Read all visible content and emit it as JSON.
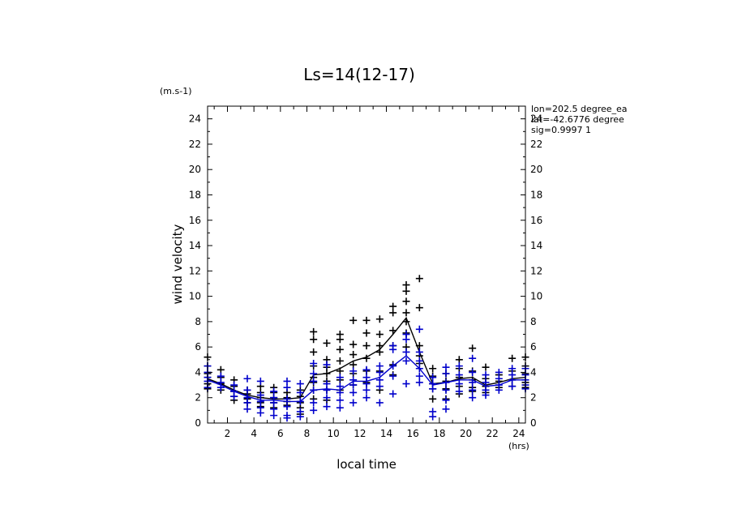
{
  "chart_data": {
    "type": "scatter",
    "title": "Ls=14(12-17)",
    "xlabel": "local time",
    "ylabel": "wind velocity",
    "x_unit": "(hrs)",
    "y_unit": "(m.s-1)",
    "xlim": [
      0.5,
      24.5
    ],
    "ylim": [
      0,
      25
    ],
    "xticks": [
      2,
      4,
      6,
      8,
      10,
      12,
      14,
      16,
      18,
      20,
      22,
      24
    ],
    "yticks": [
      0,
      2,
      4,
      6,
      8,
      10,
      12,
      14,
      16,
      18,
      20,
      22,
      24
    ],
    "annotations": [
      "lon=202.5 degree_ea",
      "lat=-42.6776 degree",
      "sig=0.9997 1"
    ],
    "colors": {
      "black": "#000000",
      "blue": "#0000cc"
    },
    "series": [
      {
        "color": "black",
        "line_x": [
          0.5,
          1.5,
          2.5,
          3.5,
          4.5,
          5.5,
          6.5,
          7.5,
          8.5,
          9.5,
          10.5,
          11.5,
          12.5,
          13.5,
          14.5,
          15.5,
          16.5,
          17.5,
          18.5,
          19.5,
          20.5,
          21.5,
          22.5,
          23.5,
          24.5
        ],
        "line_y": [
          3.5,
          3.1,
          2.6,
          2.2,
          2.0,
          1.9,
          1.9,
          2.0,
          3.8,
          3.9,
          4.3,
          4.9,
          5.2,
          5.8,
          7.0,
          8.3,
          5.6,
          3.1,
          3.2,
          3.5,
          3.6,
          3.0,
          3.2,
          3.5,
          3.6
        ],
        "points": [
          [
            0.5,
            5.2
          ],
          [
            0.5,
            4.5
          ],
          [
            0.5,
            3.9
          ],
          [
            0.5,
            3.6
          ],
          [
            0.5,
            3.1
          ],
          [
            0.5,
            2.7
          ],
          [
            1.5,
            4.2
          ],
          [
            1.5,
            3.6
          ],
          [
            1.5,
            3.1
          ],
          [
            1.5,
            2.6
          ],
          [
            2.5,
            3.4
          ],
          [
            2.5,
            2.9
          ],
          [
            2.5,
            2.5
          ],
          [
            2.5,
            2.1
          ],
          [
            2.5,
            1.8
          ],
          [
            3.5,
            2.6
          ],
          [
            3.5,
            2.3
          ],
          [
            3.5,
            1.9
          ],
          [
            3.5,
            1.6
          ],
          [
            4.5,
            2.9
          ],
          [
            4.5,
            2.4
          ],
          [
            4.5,
            2.0
          ],
          [
            4.5,
            1.6
          ],
          [
            4.5,
            1.3
          ],
          [
            5.5,
            2.8
          ],
          [
            5.5,
            2.4
          ],
          [
            5.5,
            2.0
          ],
          [
            5.5,
            1.6
          ],
          [
            5.5,
            1.2
          ],
          [
            6.5,
            2.4
          ],
          [
            6.5,
            2.0
          ],
          [
            6.5,
            1.7
          ],
          [
            6.5,
            1.4
          ],
          [
            7.5,
            2.6
          ],
          [
            7.5,
            2.1
          ],
          [
            7.5,
            1.6
          ],
          [
            7.5,
            1.2
          ],
          [
            7.5,
            0.7
          ],
          [
            8.5,
            7.2
          ],
          [
            8.5,
            6.6
          ],
          [
            8.5,
            5.6
          ],
          [
            8.5,
            4.5
          ],
          [
            8.5,
            3.6
          ],
          [
            8.5,
            3.2
          ],
          [
            8.5,
            2.6
          ],
          [
            8.5,
            1.9
          ],
          [
            9.5,
            6.3
          ],
          [
            9.5,
            5.0
          ],
          [
            9.5,
            4.4
          ],
          [
            9.5,
            3.9
          ],
          [
            9.5,
            3.3
          ],
          [
            9.5,
            2.6
          ],
          [
            9.5,
            1.8
          ],
          [
            10.5,
            7.0
          ],
          [
            10.5,
            6.6
          ],
          [
            10.5,
            5.8
          ],
          [
            10.5,
            4.9
          ],
          [
            10.5,
            4.1
          ],
          [
            10.5,
            3.4
          ],
          [
            10.5,
            2.6
          ],
          [
            11.5,
            8.1
          ],
          [
            11.5,
            6.2
          ],
          [
            11.5,
            5.4
          ],
          [
            11.5,
            4.6
          ],
          [
            11.5,
            3.9
          ],
          [
            11.5,
            3.0
          ],
          [
            12.5,
            8.1
          ],
          [
            12.5,
            7.1
          ],
          [
            12.5,
            6.1
          ],
          [
            12.5,
            5.1
          ],
          [
            12.5,
            4.1
          ],
          [
            12.5,
            3.2
          ],
          [
            13.5,
            8.2
          ],
          [
            13.5,
            7.0
          ],
          [
            13.5,
            6.1
          ],
          [
            13.5,
            5.6
          ],
          [
            13.5,
            4.1
          ],
          [
            13.5,
            2.6
          ],
          [
            14.5,
            9.2
          ],
          [
            14.5,
            8.7
          ],
          [
            14.5,
            7.3
          ],
          [
            14.5,
            6.1
          ],
          [
            14.5,
            4.6
          ],
          [
            14.5,
            3.8
          ],
          [
            15.5,
            10.9
          ],
          [
            15.5,
            10.4
          ],
          [
            15.5,
            9.6
          ],
          [
            15.5,
            8.7
          ],
          [
            15.5,
            8.0
          ],
          [
            15.5,
            7.1
          ],
          [
            15.5,
            6.0
          ],
          [
            16.5,
            11.4
          ],
          [
            16.5,
            9.1
          ],
          [
            16.5,
            6.1
          ],
          [
            16.5,
            5.3
          ],
          [
            16.5,
            4.7
          ],
          [
            17.5,
            4.3
          ],
          [
            17.5,
            3.7
          ],
          [
            17.5,
            3.1
          ],
          [
            17.5,
            2.7
          ],
          [
            17.5,
            1.9
          ],
          [
            18.5,
            3.9
          ],
          [
            18.5,
            3.3
          ],
          [
            18.5,
            2.7
          ],
          [
            18.5,
            1.9
          ],
          [
            19.5,
            5.0
          ],
          [
            19.5,
            4.3
          ],
          [
            19.5,
            3.6
          ],
          [
            19.5,
            2.9
          ],
          [
            19.5,
            2.3
          ],
          [
            20.5,
            5.9
          ],
          [
            20.5,
            4.1
          ],
          [
            20.5,
            3.4
          ],
          [
            20.5,
            2.8
          ],
          [
            20.5,
            2.5
          ],
          [
            21.5,
            4.4
          ],
          [
            21.5,
            3.5
          ],
          [
            21.5,
            2.9
          ],
          [
            21.5,
            2.4
          ],
          [
            22.5,
            3.8
          ],
          [
            22.5,
            3.3
          ],
          [
            22.5,
            2.8
          ],
          [
            23.5,
            5.1
          ],
          [
            23.5,
            4.1
          ],
          [
            23.5,
            3.4
          ],
          [
            23.5,
            2.9
          ],
          [
            24.5,
            5.2
          ],
          [
            24.5,
            4.5
          ],
          [
            24.5,
            3.9
          ],
          [
            24.5,
            3.2
          ],
          [
            24.5,
            2.8
          ]
        ]
      },
      {
        "color": "blue",
        "line_x": [
          0.5,
          1.5,
          2.5,
          3.5,
          4.5,
          5.5,
          6.5,
          7.5,
          8.5,
          9.5,
          10.5,
          11.5,
          12.5,
          13.5,
          14.5,
          15.5,
          16.5,
          17.5,
          18.5,
          19.5,
          20.5,
          21.5,
          22.5,
          23.5,
          24.5
        ],
        "line_y": [
          3.4,
          3.0,
          2.5,
          2.1,
          1.8,
          1.8,
          1.7,
          1.7,
          2.6,
          2.7,
          2.6,
          3.3,
          3.3,
          3.6,
          4.5,
          5.3,
          4.3,
          3.0,
          3.2,
          3.4,
          3.4,
          2.9,
          3.0,
          3.4,
          3.4
        ],
        "points": [
          [
            0.5,
            4.5
          ],
          [
            0.5,
            4.0
          ],
          [
            0.5,
            3.6
          ],
          [
            0.5,
            3.3
          ],
          [
            0.5,
            2.8
          ],
          [
            1.5,
            3.7
          ],
          [
            1.5,
            3.2
          ],
          [
            1.5,
            2.8
          ],
          [
            2.5,
            3.0
          ],
          [
            2.5,
            2.5
          ],
          [
            2.5,
            2.1
          ],
          [
            3.5,
            3.5
          ],
          [
            3.5,
            2.6
          ],
          [
            3.5,
            2.0
          ],
          [
            3.5,
            1.6
          ],
          [
            3.5,
            1.1
          ],
          [
            4.5,
            3.3
          ],
          [
            4.5,
            2.2
          ],
          [
            4.5,
            1.7
          ],
          [
            4.5,
            1.2
          ],
          [
            4.5,
            0.8
          ],
          [
            5.5,
            2.5
          ],
          [
            5.5,
            2.0
          ],
          [
            5.5,
            1.6
          ],
          [
            5.5,
            1.1
          ],
          [
            5.5,
            0.6
          ],
          [
            6.5,
            3.3
          ],
          [
            6.5,
            2.8
          ],
          [
            6.5,
            1.9
          ],
          [
            6.5,
            1.3
          ],
          [
            6.5,
            0.6
          ],
          [
            6.5,
            0.4
          ],
          [
            7.5,
            3.1
          ],
          [
            7.5,
            2.4
          ],
          [
            7.5,
            1.7
          ],
          [
            7.5,
            0.9
          ],
          [
            7.5,
            0.5
          ],
          [
            8.5,
            4.7
          ],
          [
            8.5,
            3.9
          ],
          [
            8.5,
            3.3
          ],
          [
            8.5,
            2.6
          ],
          [
            8.5,
            1.6
          ],
          [
            8.5,
            1.0
          ],
          [
            9.5,
            4.6
          ],
          [
            9.5,
            3.1
          ],
          [
            9.5,
            2.6
          ],
          [
            9.5,
            2.0
          ],
          [
            9.5,
            1.3
          ],
          [
            10.5,
            3.6
          ],
          [
            10.5,
            2.9
          ],
          [
            10.5,
            2.4
          ],
          [
            10.5,
            1.8
          ],
          [
            10.5,
            1.2
          ],
          [
            11.5,
            4.1
          ],
          [
            11.5,
            3.4
          ],
          [
            11.5,
            3.0
          ],
          [
            11.5,
            2.4
          ],
          [
            11.5,
            1.6
          ],
          [
            12.5,
            4.2
          ],
          [
            12.5,
            3.6
          ],
          [
            12.5,
            3.1
          ],
          [
            12.5,
            2.6
          ],
          [
            12.5,
            2.0
          ],
          [
            13.5,
            4.5
          ],
          [
            13.5,
            4.0
          ],
          [
            13.5,
            3.4
          ],
          [
            13.5,
            2.9
          ],
          [
            13.5,
            1.6
          ],
          [
            14.5,
            6.1
          ],
          [
            14.5,
            5.8
          ],
          [
            14.5,
            4.5
          ],
          [
            14.5,
            3.7
          ],
          [
            14.5,
            2.3
          ],
          [
            15.5,
            7.0
          ],
          [
            15.5,
            6.6
          ],
          [
            15.5,
            5.6
          ],
          [
            15.5,
            4.9
          ],
          [
            15.5,
            3.1
          ],
          [
            16.5,
            7.4
          ],
          [
            16.5,
            5.6
          ],
          [
            16.5,
            4.9
          ],
          [
            16.5,
            4.3
          ],
          [
            16.5,
            3.7
          ],
          [
            16.5,
            3.2
          ],
          [
            17.5,
            3.6
          ],
          [
            17.5,
            3.1
          ],
          [
            17.5,
            2.7
          ],
          [
            17.5,
            0.9
          ],
          [
            17.5,
            0.5
          ],
          [
            18.5,
            4.4
          ],
          [
            18.5,
            3.9
          ],
          [
            18.5,
            3.2
          ],
          [
            18.5,
            2.6
          ],
          [
            18.5,
            1.8
          ],
          [
            18.5,
            1.1
          ],
          [
            19.5,
            4.5
          ],
          [
            19.5,
            3.8
          ],
          [
            19.5,
            3.1
          ],
          [
            19.5,
            2.5
          ],
          [
            20.5,
            5.1
          ],
          [
            20.5,
            4.0
          ],
          [
            20.5,
            3.2
          ],
          [
            20.5,
            2.6
          ],
          [
            20.5,
            2.0
          ],
          [
            21.5,
            3.8
          ],
          [
            21.5,
            3.2
          ],
          [
            21.5,
            2.6
          ],
          [
            21.5,
            2.2
          ],
          [
            22.5,
            4.0
          ],
          [
            22.5,
            3.5
          ],
          [
            22.5,
            3.0
          ],
          [
            22.5,
            2.6
          ],
          [
            23.5,
            4.3
          ],
          [
            23.5,
            3.8
          ],
          [
            23.5,
            3.4
          ],
          [
            23.5,
            2.9
          ],
          [
            24.5,
            4.3
          ],
          [
            24.5,
            3.8
          ],
          [
            24.5,
            3.4
          ],
          [
            24.5,
            3.0
          ],
          [
            24.5,
            2.7
          ]
        ]
      }
    ]
  }
}
